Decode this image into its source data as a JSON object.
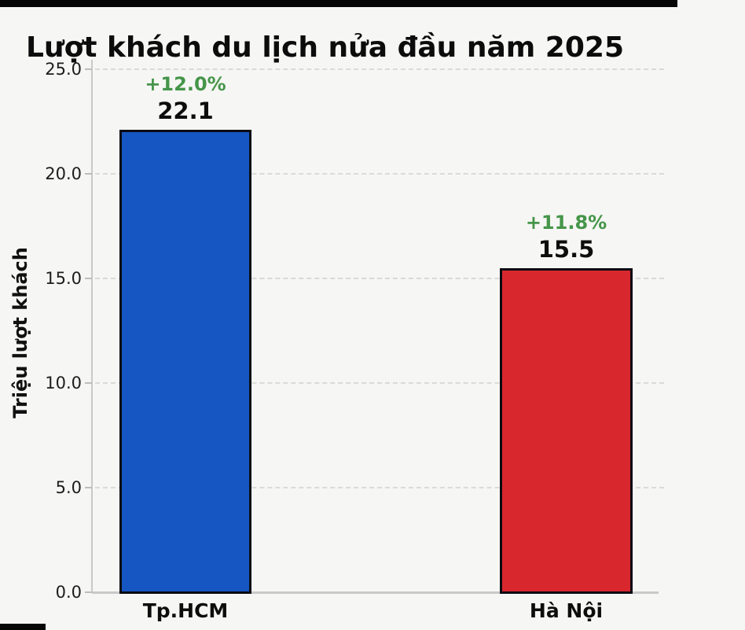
{
  "title": "Lượt khách du lịch nửa đầu năm 2025",
  "colors": {
    "background": "#f6f6f4",
    "bar_blue": "#1656C3",
    "bar_red": "#D8282E",
    "growth_green": "#459549",
    "bar_edge": "#0b0b12",
    "grid": "#dadada",
    "axis": "#c9c9c9",
    "title_text": "#0c0c0c",
    "tick_text": "#1c1c1c"
  },
  "chart_data": {
    "type": "bar",
    "title": "Lượt khách du lịch nửa đầu năm 2025",
    "xlabel": "",
    "ylabel": "Triệu lượt khách",
    "ylim": [
      0,
      25
    ],
    "yticks": [
      "0.0",
      "5.0",
      "10.0",
      "15.0",
      "20.0",
      "25.0"
    ],
    "ytick_values": [
      0,
      5,
      10,
      15,
      20,
      25
    ],
    "grid": true,
    "legend": false,
    "categories": [
      "Tp.HCM",
      "Hà Nội"
    ],
    "values": [
      22.1,
      15.5
    ],
    "bars": [
      {
        "category": "Tp.HCM",
        "value": 22.1,
        "value_label": "22.1",
        "growth_label": "+12.0%",
        "color": "#1656C3"
      },
      {
        "category": "Hà Nội",
        "value": 15.5,
        "value_label": "15.5",
        "growth_label": "+11.8%",
        "color": "#D8282E"
      }
    ]
  }
}
